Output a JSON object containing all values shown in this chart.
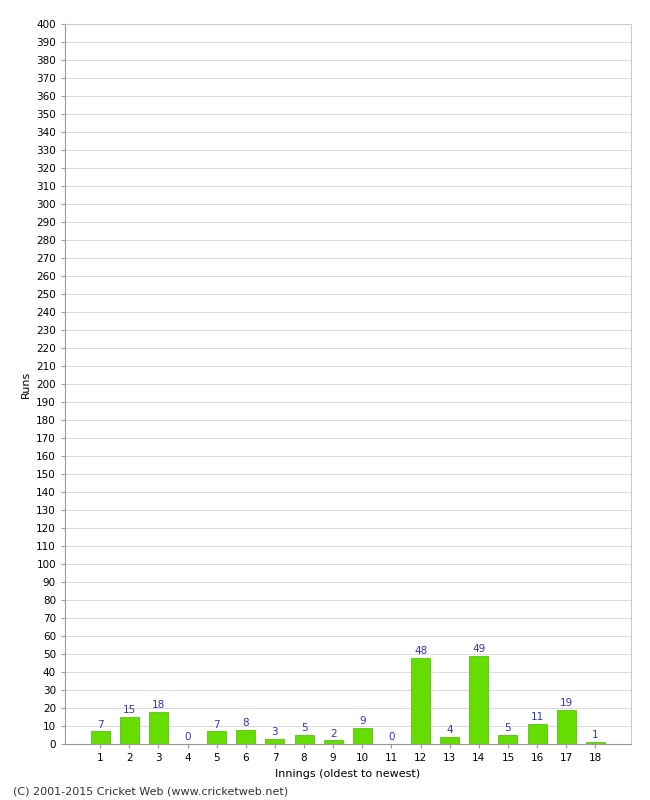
{
  "title_visible": false,
  "xlabel": "Innings (oldest to newest)",
  "ylabel": "Runs",
  "categories": [
    1,
    2,
    3,
    4,
    5,
    6,
    7,
    8,
    9,
    10,
    11,
    12,
    13,
    14,
    15,
    16,
    17,
    18
  ],
  "values": [
    7,
    15,
    18,
    0,
    7,
    8,
    3,
    5,
    2,
    9,
    0,
    48,
    4,
    49,
    5,
    11,
    19,
    1
  ],
  "bar_color": "#66dd00",
  "bar_edge_color": "#44bb00",
  "label_color": "#3333cc",
  "ylim": [
    0,
    400
  ],
  "ytick_step": 10,
  "background_color": "#ffffff",
  "grid_color": "#cccccc",
  "footer": "(C) 2001-2015 Cricket Web (www.cricketweb.net)",
  "label_fontsize": 7.5,
  "axis_label_fontsize": 8,
  "tick_fontsize": 7.5,
  "footer_fontsize": 8,
  "bar_width": 0.65
}
